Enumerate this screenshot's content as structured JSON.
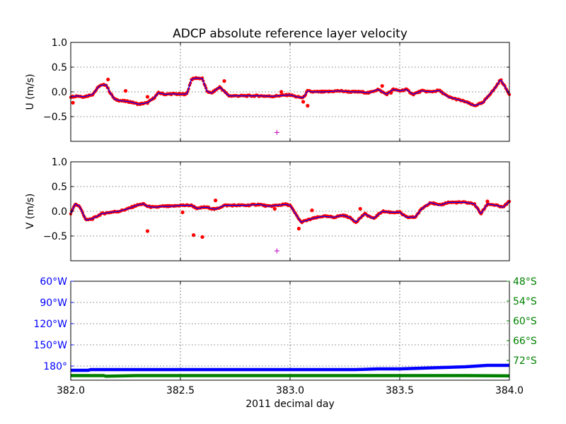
{
  "title": "ADCP absolute reference layer velocity",
  "colors": {
    "axes": "#000000",
    "grid": "#000000",
    "measured": "#ff0000",
    "smoothed": "#0000ff",
    "marker": "#bf00bf",
    "longitude": "#0000ff",
    "latitude": "#008000"
  },
  "chart_data": [
    {
      "type": "scatter",
      "panel": "u",
      "title": "ADCP absolute reference layer velocity",
      "xlabel": "",
      "ylabel": "U (m/s)",
      "xlim": [
        382.0,
        384.0
      ],
      "ylim": [
        -1.0,
        1.0
      ],
      "xticks": [
        382.0,
        382.5,
        383.0,
        383.5,
        384.0
      ],
      "yticks": [
        -0.5,
        0.0,
        0.5,
        1.0
      ],
      "ytick_labels": [
        "−0.5",
        "0.0",
        "0.5",
        "1.0"
      ],
      "grid": true,
      "knots_x": [
        382.0,
        382.03,
        382.06,
        382.1,
        382.13,
        382.16,
        382.18,
        382.2,
        382.23,
        382.27,
        382.31,
        382.35,
        382.38,
        382.4,
        382.43,
        382.47,
        382.5,
        382.53,
        382.55,
        382.57,
        382.6,
        382.62,
        382.64,
        382.68,
        382.72,
        382.76,
        382.8,
        382.86,
        382.92,
        382.97,
        383.0,
        383.03,
        383.06,
        383.08,
        383.1,
        383.16,
        383.22,
        383.28,
        383.32,
        383.36,
        383.4,
        383.44,
        383.47,
        383.5,
        383.53,
        383.56,
        383.6,
        383.64,
        383.68,
        383.72,
        383.76,
        383.8,
        383.84,
        383.88,
        383.9,
        383.93,
        383.96,
        384.0
      ],
      "knots_y": [
        -0.1,
        -0.08,
        -0.1,
        -0.05,
        0.12,
        0.15,
        -0.02,
        -0.15,
        -0.18,
        -0.2,
        -0.25,
        -0.22,
        -0.12,
        -0.02,
        -0.05,
        -0.04,
        -0.05,
        -0.04,
        0.25,
        0.28,
        0.27,
        0.02,
        -0.03,
        0.1,
        -0.08,
        -0.08,
        -0.08,
        -0.08,
        -0.09,
        -0.07,
        -0.06,
        -0.1,
        -0.12,
        0.02,
        0.0,
        0.0,
        0.02,
        0.0,
        0.0,
        -0.02,
        0.05,
        -0.05,
        0.05,
        0.02,
        0.05,
        -0.05,
        0.02,
        0.0,
        0.03,
        -0.1,
        -0.15,
        -0.2,
        -0.28,
        -0.22,
        -0.1,
        0.05,
        0.25,
        -0.05
      ],
      "outliers": [
        {
          "x": 382.01,
          "y": -0.22
        },
        {
          "x": 382.17,
          "y": 0.25
        },
        {
          "x": 382.25,
          "y": 0.02
        },
        {
          "x": 382.35,
          "y": -0.1
        },
        {
          "x": 382.7,
          "y": 0.22
        },
        {
          "x": 382.96,
          "y": 0.0
        },
        {
          "x": 383.06,
          "y": -0.2
        },
        {
          "x": 383.08,
          "y": -0.28
        },
        {
          "x": 383.42,
          "y": 0.12
        },
        {
          "x": 383.46,
          "y": -0.02
        }
      ],
      "marker": {
        "x": 382.94,
        "y": -0.82,
        "symbol": "+"
      }
    },
    {
      "type": "scatter",
      "panel": "v",
      "xlabel": "",
      "ylabel": "V (m/s)",
      "xlim": [
        382.0,
        384.0
      ],
      "ylim": [
        -1.0,
        1.0
      ],
      "xticks": [
        382.0,
        382.5,
        383.0,
        383.5,
        384.0
      ],
      "yticks": [
        -0.5,
        0.0,
        0.5,
        1.0
      ],
      "ytick_labels": [
        "−0.5",
        "0.0",
        "0.5",
        "1.0"
      ],
      "grid": true,
      "knots_x": [
        382.0,
        382.02,
        382.04,
        382.07,
        382.1,
        382.14,
        382.18,
        382.22,
        382.26,
        382.3,
        382.33,
        382.35,
        382.38,
        382.42,
        382.46,
        382.5,
        382.55,
        382.58,
        382.6,
        382.62,
        382.66,
        382.7,
        382.75,
        382.8,
        382.86,
        382.9,
        382.94,
        382.98,
        383.0,
        383.02,
        383.05,
        383.1,
        383.15,
        383.2,
        383.24,
        383.27,
        383.3,
        383.34,
        383.38,
        383.42,
        383.46,
        383.5,
        383.53,
        383.57,
        383.6,
        383.64,
        383.68,
        383.72,
        383.76,
        383.8,
        383.84,
        383.87,
        383.9,
        383.94,
        383.97,
        384.0
      ],
      "knots_y": [
        -0.05,
        0.15,
        0.1,
        -0.18,
        -0.15,
        -0.05,
        -0.02,
        0.0,
        0.05,
        0.12,
        0.15,
        0.1,
        0.08,
        0.1,
        0.1,
        0.12,
        0.12,
        0.05,
        0.08,
        0.08,
        0.04,
        0.12,
        0.12,
        0.12,
        0.14,
        0.1,
        0.12,
        0.14,
        0.12,
        -0.02,
        -0.22,
        -0.15,
        -0.1,
        -0.12,
        -0.08,
        -0.12,
        -0.22,
        -0.05,
        -0.15,
        0.0,
        -0.02,
        -0.02,
        -0.12,
        -0.12,
        0.05,
        0.18,
        0.12,
        0.18,
        0.18,
        0.18,
        0.15,
        -0.05,
        0.15,
        0.12,
        0.08,
        0.2
      ],
      "outliers": [
        {
          "x": 382.35,
          "y": -0.4
        },
        {
          "x": 382.51,
          "y": -0.02
        },
        {
          "x": 382.56,
          "y": -0.48
        },
        {
          "x": 382.6,
          "y": -0.52
        },
        {
          "x": 382.66,
          "y": 0.22
        },
        {
          "x": 382.93,
          "y": 0.05
        },
        {
          "x": 383.1,
          "y": 0.02
        },
        {
          "x": 383.04,
          "y": -0.35
        },
        {
          "x": 383.32,
          "y": 0.05
        },
        {
          "x": 383.9,
          "y": 0.2
        }
      ],
      "marker": {
        "x": 382.94,
        "y": -0.8,
        "symbol": "+"
      }
    },
    {
      "type": "line",
      "panel": "position",
      "xlabel": "2011 decimal day",
      "ylabel": "",
      "xlim": [
        382.0,
        384.0
      ],
      "xticks": [
        382.0,
        382.5,
        383.0,
        383.5,
        384.0
      ],
      "xtick_labels": [
        "382.0",
        "382.5",
        "383.0",
        "383.5",
        "384.0"
      ],
      "grid": true,
      "left_axis": {
        "ylim": [
          -200,
          -60
        ],
        "yticks": [
          60,
          90,
          120,
          150,
          180
        ],
        "ytick_labels": [
          "60°W",
          "90°W",
          "120°W",
          "150°W",
          "180°"
        ]
      },
      "right_axis": {
        "ylim": [
          -78,
          -48
        ],
        "yticks": [
          -48,
          -54,
          -60,
          -66,
          -72
        ],
        "ytick_labels": [
          "48°S",
          "54°S",
          "60°S",
          "66°S",
          "72°S"
        ]
      },
      "series": [
        {
          "axis": "left",
          "x": [
            382.0,
            382.08,
            382.09,
            382.4,
            382.7,
            383.0,
            383.3,
            383.4,
            383.5,
            383.6,
            383.7,
            383.8,
            383.9,
            384.0
          ],
          "values": [
            -186,
            -186,
            -185,
            -185,
            -185,
            -185,
            -185,
            -184,
            -184,
            -183,
            -182,
            -181,
            -179,
            -179
          ]
        },
        {
          "axis": "right",
          "x": [
            382.0,
            382.15,
            382.16,
            382.3,
            383.0,
            383.8,
            384.0
          ],
          "values": [
            -76.6,
            -76.6,
            -76.8,
            -76.6,
            -76.6,
            -76.6,
            -76.7
          ]
        }
      ]
    }
  ]
}
